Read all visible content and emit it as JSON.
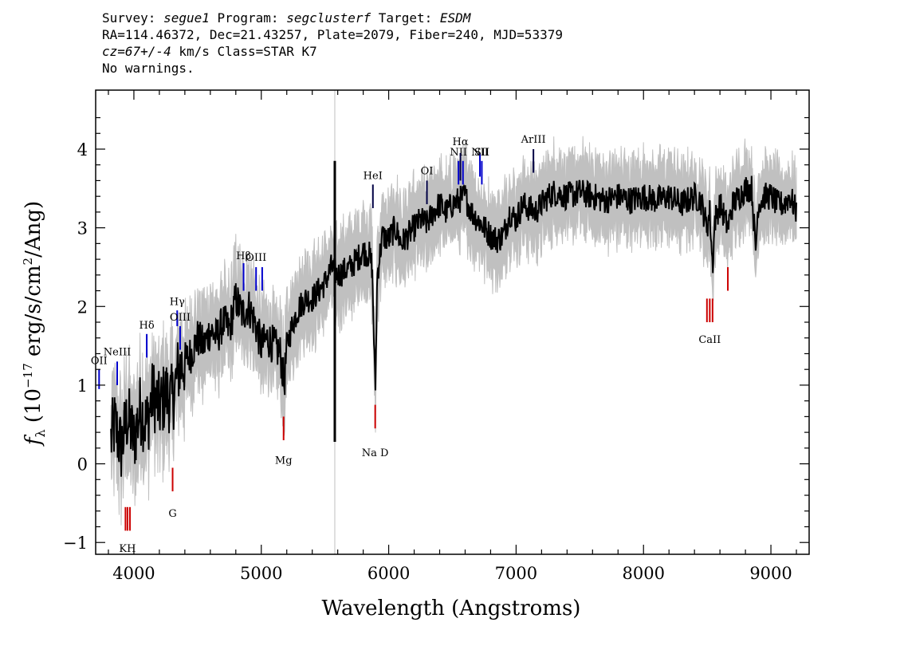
{
  "header": {
    "survey_prefix": "Survey: ",
    "survey": "segue1",
    "program_prefix": " Program: ",
    "program": "segclusterf",
    "target_prefix": " Target: ",
    "target": "ESDM",
    "line2": "RA=114.46372, Dec=21.43257, Plate=2079, Fiber=240, MJD=53379",
    "cz": "cz=67+/-4",
    "line3_rest": " km/s Class=STAR K7",
    "line4": "No warnings."
  },
  "chart_data": {
    "type": "line",
    "xlabel": "Wavelength (Angstroms)",
    "ylabel": "f_λ (10^-17 erg/s/cm^2/Ang)",
    "xlim": [
      3700,
      9300
    ],
    "ylim": [
      -1.15,
      4.75
    ],
    "x_ticks": [
      4000,
      5000,
      6000,
      7000,
      8000,
      9000
    ],
    "y_ticks": [
      -1,
      0,
      1,
      2,
      3,
      4
    ],
    "sky_line_x": 5577,
    "series": [
      {
        "color": "#000000",
        "x": [
          3820,
          3850,
          3900,
          3950,
          4000,
          4050,
          4100,
          4150,
          4200,
          4250,
          4300,
          4350,
          4400,
          4450,
          4500,
          4550,
          4600,
          4650,
          4700,
          4750,
          4800,
          4850,
          4900,
          4950,
          5000,
          5050,
          5100,
          5150,
          5180,
          5200,
          5250,
          5300,
          5350,
          5400,
          5450,
          5500,
          5550,
          5600,
          5650,
          5700,
          5750,
          5800,
          5850,
          5870,
          5890,
          5895,
          5910,
          5950,
          6000,
          6050,
          6100,
          6150,
          6200,
          6250,
          6300,
          6350,
          6400,
          6450,
          6500,
          6550,
          6600,
          6650,
          6700,
          6750,
          6800,
          6850,
          6900,
          6950,
          7000,
          7050,
          7100,
          7150,
          7200,
          7250,
          7300,
          7400,
          7500,
          7600,
          7700,
          7800,
          7900,
          8000,
          8100,
          8200,
          8300,
          8400,
          8450,
          8498,
          8520,
          8542,
          8560,
          8600,
          8662,
          8700,
          8750,
          8800,
          8850,
          8880,
          8900,
          8950,
          9000,
          9050,
          9100,
          9150,
          9200
        ],
        "y": [
          0.3,
          0.5,
          0.2,
          0.6,
          0.3,
          0.7,
          0.5,
          0.9,
          0.7,
          0.9,
          0.8,
          1.2,
          1.3,
          1.4,
          1.6,
          1.5,
          1.7,
          1.6,
          1.8,
          1.7,
          2.1,
          1.9,
          2.0,
          1.8,
          1.5,
          1.6,
          1.5,
          1.4,
          1.0,
          1.5,
          1.8,
          2.0,
          2.1,
          2.1,
          2.2,
          2.3,
          2.5,
          2.4,
          2.45,
          2.5,
          2.6,
          2.7,
          2.65,
          2.5,
          1.2,
          0.9,
          2.4,
          2.9,
          2.85,
          3.0,
          2.8,
          2.9,
          3.0,
          3.1,
          3.05,
          3.2,
          3.3,
          3.2,
          3.3,
          3.35,
          3.4,
          3.2,
          3.1,
          3.0,
          2.9,
          2.85,
          2.9,
          3.2,
          3.1,
          3.3,
          3.25,
          3.2,
          3.3,
          3.4,
          3.45,
          3.4,
          3.45,
          3.4,
          3.35,
          3.4,
          3.35,
          3.4,
          3.35,
          3.4,
          3.3,
          3.4,
          3.35,
          3.0,
          3.2,
          2.5,
          3.1,
          3.3,
          3.0,
          3.3,
          3.4,
          3.5,
          3.5,
          2.7,
          3.3,
          3.4,
          3.4,
          3.3,
          3.3,
          3.4,
          3.2
        ],
        "noise": 0.18
      }
    ],
    "error_band": {
      "color": "#c0c0c0",
      "x_from": 3820,
      "x_to": 9200,
      "halfwidth_start": 0.45,
      "halfwidth_end": 0.35
    },
    "spikes": [
      {
        "x": 5577,
        "low": 0.28,
        "high": 3.85
      }
    ],
    "line_markers": [
      {
        "label": "OII",
        "x": 3727,
        "color": "#0000cc",
        "y_low": 0.95,
        "y_high": 1.2,
        "label_y": 1.27
      },
      {
        "label": "NeIII",
        "x": 3869,
        "color": "#0000cc",
        "y_low": 1.0,
        "y_high": 1.3,
        "label_y": 1.38
      },
      {
        "label": "Hδ",
        "x": 4101,
        "color": "#0000cc",
        "y_low": 1.35,
        "y_high": 1.65,
        "label_y": 1.72
      },
      {
        "label": "Hγ",
        "x": 4340,
        "color": "#0000cc",
        "y_low": 1.75,
        "y_high": 1.95,
        "label_y": 2.02
      },
      {
        "label": "OIII",
        "x": 4363,
        "color": "#0000cc",
        "y_low": 1.45,
        "y_high": 1.75,
        "label_y": 1.82
      },
      {
        "label": "Hβ",
        "x": 4861,
        "color": "#0000cc",
        "y_low": 2.2,
        "y_high": 2.55,
        "label_y": 2.6
      },
      {
        "label": "OIII",
        "x": 4959,
        "color": "#0000cc",
        "y_low": 2.2,
        "y_high": 2.5,
        "label_y": 2.58
      },
      {
        "label": "",
        "x": 5007,
        "color": "#0000cc",
        "y_low": 2.2,
        "y_high": 2.5,
        "label_y": 2.58
      },
      {
        "label": "HeI",
        "x": 5876,
        "color": "#000044",
        "y_low": 3.25,
        "y_high": 3.55,
        "label_y": 3.62
      },
      {
        "label": "OI",
        "x": 6300,
        "color": "#000044",
        "y_low": 3.3,
        "y_high": 3.6,
        "label_y": 3.68
      },
      {
        "label": "NII",
        "x": 6548,
        "color": "#0000cc",
        "y_low": 3.55,
        "y_high": 3.85,
        "label_y": 3.92
      },
      {
        "label": "Hα",
        "x": 6563,
        "color": "#000044",
        "y_low": 3.6,
        "y_high": 3.95,
        "label_y": 4.05
      },
      {
        "label": "",
        "x": 6583,
        "color": "#0000cc",
        "y_low": 3.55,
        "y_high": 3.85,
        "label_y": 3.92
      },
      {
        "label": "NII",
        "x": 6716,
        "color": "#0000cc",
        "y_low": 3.65,
        "y_high": 3.95,
        "label_y": 3.92
      },
      {
        "label": "SII",
        "x": 6731,
        "color": "#0000cc",
        "y_low": 3.55,
        "y_high": 3.85,
        "label_y": 3.92
      },
      {
        "label": "ArIII",
        "x": 7136,
        "color": "#000044",
        "y_low": 3.7,
        "y_high": 4.0,
        "label_y": 4.08
      },
      {
        "label": "Mg",
        "x": 5175,
        "color": "#cc0000",
        "y_low": 0.3,
        "y_high": 0.6,
        "label_y": 0.12,
        "below": true
      },
      {
        "label": "Na D",
        "x": 5894,
        "color": "#cc0000",
        "y_low": 0.45,
        "y_high": 0.75,
        "label_y": 0.22,
        "below": true
      },
      {
        "label": "G",
        "x": 4304,
        "color": "#cc0000",
        "y_low": -0.35,
        "y_high": -0.05,
        "label_y": -0.55,
        "below": true
      },
      {
        "label": "KH",
        "x": 3950,
        "color": "#cc0000",
        "y_low": -0.85,
        "y_high": -0.55,
        "label_y": -1.0,
        "below": true
      },
      {
        "label": "",
        "x": 3934,
        "color": "#cc0000",
        "y_low": -0.85,
        "y_high": -0.55,
        "label_y": -1.0,
        "below": true
      },
      {
        "label": "",
        "x": 3969,
        "color": "#cc0000",
        "y_low": -0.85,
        "y_high": -0.55,
        "label_y": -1.0,
        "below": true
      },
      {
        "label": "CaII",
        "x": 8520,
        "color": "#cc0000",
        "y_low": 1.8,
        "y_high": 2.1,
        "label_y": 1.66,
        "below": true
      },
      {
        "label": "",
        "x": 8498,
        "color": "#cc0000",
        "y_low": 1.8,
        "y_high": 2.1,
        "label_y": 1.66,
        "below": true
      },
      {
        "label": "",
        "x": 8542,
        "color": "#cc0000",
        "y_low": 1.8,
        "y_high": 2.1,
        "label_y": 1.66,
        "below": true
      },
      {
        "label": "",
        "x": 8662,
        "color": "#cc0000",
        "y_low": 2.2,
        "y_high": 2.5,
        "label_y": 2.4,
        "below": true
      }
    ]
  }
}
